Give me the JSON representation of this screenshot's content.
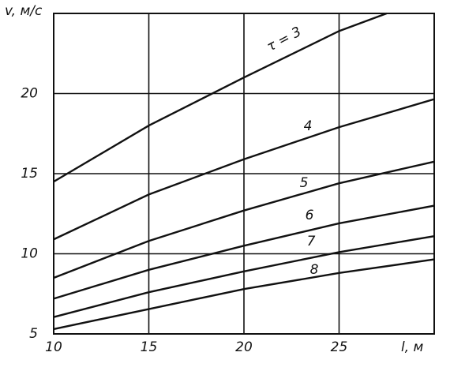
{
  "chart_data": {
    "type": "line",
    "xlabel": "l, м",
    "ylabel": "v, м/с",
    "xlim": [
      10,
      30
    ],
    "ylim": [
      5,
      25
    ],
    "xticks": [
      10,
      15,
      20,
      25
    ],
    "yticks": [
      5,
      10,
      15,
      20
    ],
    "grid": true,
    "series": [
      {
        "name": "τ = 3",
        "color": "#111111",
        "x": [
          10,
          15,
          20,
          25,
          27.5
        ],
        "values": [
          14.5,
          18.0,
          21.0,
          23.9,
          25.0
        ]
      },
      {
        "name": "4",
        "color": "#111111",
        "x": [
          10,
          15,
          20,
          25,
          30
        ],
        "values": [
          10.9,
          13.7,
          15.9,
          17.9,
          19.65
        ]
      },
      {
        "name": "5",
        "color": "#111111",
        "x": [
          10,
          15,
          20,
          25,
          30
        ],
        "values": [
          8.5,
          10.8,
          12.7,
          14.4,
          15.75
        ]
      },
      {
        "name": "6",
        "color": "#111111",
        "x": [
          10,
          15,
          20,
          25,
          30
        ],
        "values": [
          7.2,
          9.0,
          10.5,
          11.9,
          13.0
        ]
      },
      {
        "name": "7",
        "color": "#111111",
        "x": [
          10,
          15,
          20,
          25,
          30
        ],
        "values": [
          6.05,
          7.6,
          8.9,
          10.1,
          11.1
        ]
      },
      {
        "name": "8",
        "color": "#111111",
        "x": [
          10,
          15,
          20,
          25,
          30
        ],
        "values": [
          5.3,
          6.55,
          7.8,
          8.8,
          9.65
        ]
      }
    ]
  }
}
